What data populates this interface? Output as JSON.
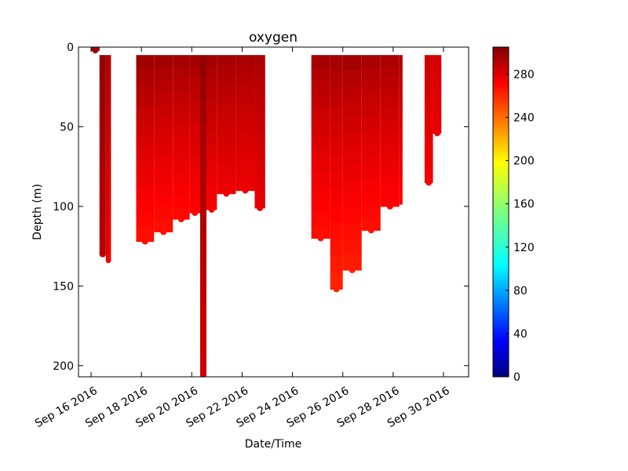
{
  "chart_data": {
    "type": "scatter",
    "title": "oxygen",
    "xlabel": "Date/Time",
    "ylabel": "Depth (m)",
    "x_type": "date",
    "xlim": [
      "2016-09-15T12:00",
      "2016-10-01T00:00"
    ],
    "ylim": [
      207,
      0
    ],
    "y_inverted": true,
    "x_ticks": [
      {
        "date": "2016-09-16",
        "label": "Sep 16 2016"
      },
      {
        "date": "2016-09-18",
        "label": "Sep 18 2016"
      },
      {
        "date": "2016-09-20",
        "label": "Sep 20 2016"
      },
      {
        "date": "2016-09-22",
        "label": "Sep 22 2016"
      },
      {
        "date": "2016-09-24",
        "label": "Sep 24 2016"
      },
      {
        "date": "2016-09-26",
        "label": "Sep 26 2016"
      },
      {
        "date": "2016-09-28",
        "label": "Sep 28 2016"
      },
      {
        "date": "2016-09-30",
        "label": "Sep 30 2016"
      }
    ],
    "y_ticks": [
      0,
      50,
      100,
      150,
      200
    ],
    "colorbar": {
      "colormap": "jet",
      "range": [
        0,
        305
      ],
      "ticks": [
        0,
        40,
        80,
        120,
        160,
        200,
        240,
        280
      ]
    },
    "profile_groups": [
      {
        "start": "2016-09-16T00:00",
        "end": "2016-09-16T08:00",
        "max_depth": 2,
        "surface_o2": 295,
        "deep_o2": 295
      },
      {
        "start": "2016-09-16T08:00",
        "end": "2016-09-16T14:00",
        "max_depth": 130,
        "surface_o2": 300,
        "deep_o2": 288
      },
      {
        "start": "2016-09-16T14:00",
        "end": "2016-09-16T19:00",
        "max_depth": 134,
        "surface_o2": 292,
        "deep_o2": 272
      },
      {
        "start": "2016-09-17T19:00",
        "end": "2016-09-18T12:00",
        "max_depth": 122,
        "surface_o2": 298,
        "deep_o2": 262
      },
      {
        "start": "2016-09-18T12:00",
        "end": "2016-09-19T06:00",
        "max_depth": 116,
        "surface_o2": 297,
        "deep_o2": 262
      },
      {
        "start": "2016-09-19T06:00",
        "end": "2016-09-19T22:00",
        "max_depth": 108,
        "surface_o2": 296,
        "deep_o2": 264
      },
      {
        "start": "2016-09-19T22:00",
        "end": "2016-09-20T08:00",
        "max_depth": 104,
        "surface_o2": 296,
        "deep_o2": 266
      },
      {
        "start": "2016-09-20T08:00",
        "end": "2016-09-20T14:00",
        "max_depth": 206,
        "surface_o2": 300,
        "deep_o2": 282
      },
      {
        "start": "2016-09-20T14:00",
        "end": "2016-09-21T00:00",
        "max_depth": 102,
        "surface_o2": 296,
        "deep_o2": 268
      },
      {
        "start": "2016-09-21T00:00",
        "end": "2016-09-21T18:00",
        "max_depth": 92,
        "surface_o2": 295,
        "deep_o2": 272
      },
      {
        "start": "2016-09-21T18:00",
        "end": "2016-09-22T12:00",
        "max_depth": 90,
        "surface_o2": 294,
        "deep_o2": 272
      },
      {
        "start": "2016-09-22T12:00",
        "end": "2016-09-22T22:00",
        "max_depth": 101,
        "surface_o2": 293,
        "deep_o2": 274
      },
      {
        "start": "2016-09-24T18:00",
        "end": "2016-09-25T12:00",
        "max_depth": 120,
        "surface_o2": 296,
        "deep_o2": 262
      },
      {
        "start": "2016-09-25T12:00",
        "end": "2016-09-26T00:00",
        "max_depth": 152,
        "surface_o2": 296,
        "deep_o2": 256
      },
      {
        "start": "2016-09-26T00:00",
        "end": "2016-09-26T18:00",
        "max_depth": 140,
        "surface_o2": 296,
        "deep_o2": 258
      },
      {
        "start": "2016-09-26T18:00",
        "end": "2016-09-27T12:00",
        "max_depth": 115,
        "surface_o2": 295,
        "deep_o2": 262
      },
      {
        "start": "2016-09-27T12:00",
        "end": "2016-09-28T06:00",
        "max_depth": 100,
        "surface_o2": 294,
        "deep_o2": 266
      },
      {
        "start": "2016-09-28T06:00",
        "end": "2016-09-28T09:00",
        "max_depth": 98,
        "surface_o2": 292,
        "deep_o2": 266
      },
      {
        "start": "2016-09-29T06:00",
        "end": "2016-09-29T14:00",
        "max_depth": 85,
        "surface_o2": 282,
        "deep_o2": 270
      },
      {
        "start": "2016-09-29T14:00",
        "end": "2016-09-29T22:00",
        "max_depth": 54,
        "surface_o2": 280,
        "deep_o2": 274
      }
    ]
  }
}
